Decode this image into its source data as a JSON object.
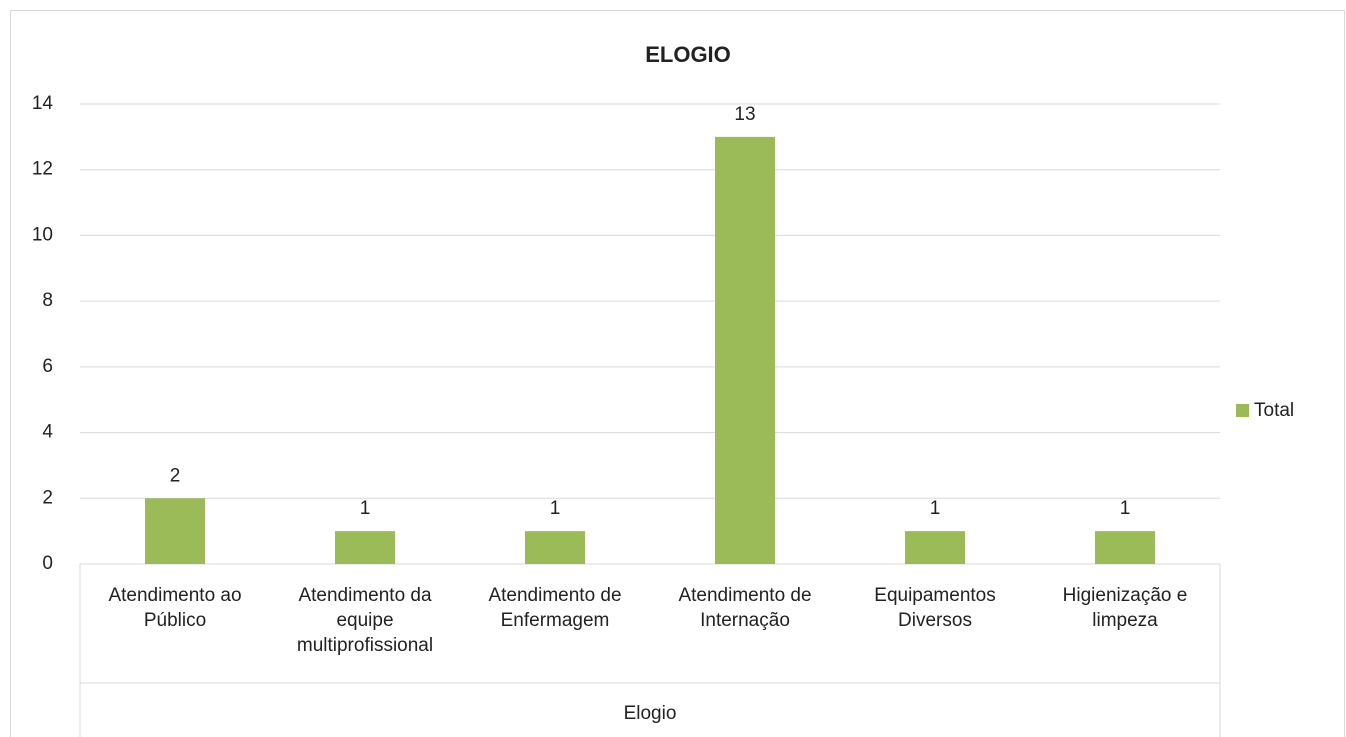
{
  "chart_data": {
    "type": "bar",
    "title": "ELOGIO",
    "x_label": "Elogio",
    "categories": [
      "Atendimento ao Público",
      "Atendimento da equipe multiprofissional",
      "Atendimento de Enfermagem",
      "Atendimento de Internação",
      "Equipamentos Diversos",
      "Higienização e limpeza"
    ],
    "series": [
      {
        "name": "Total",
        "color": "#9bbb59",
        "values": [
          2,
          1,
          1,
          13,
          1,
          1
        ]
      }
    ],
    "ylim": [
      0,
      14
    ],
    "yticks": [
      0,
      2,
      4,
      6,
      8,
      10,
      12,
      14
    ],
    "grid": true,
    "legend": "right"
  }
}
